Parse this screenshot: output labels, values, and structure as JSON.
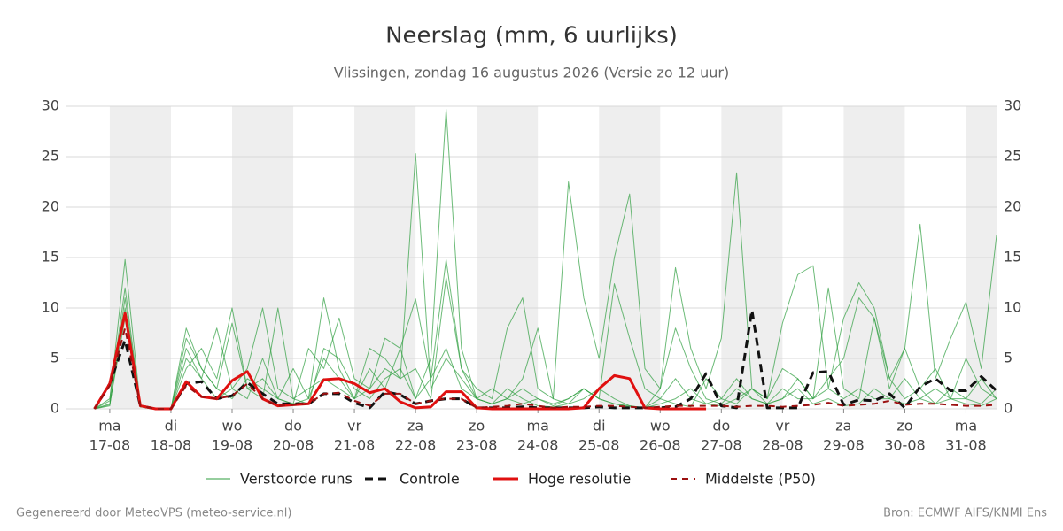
{
  "chart_data": {
    "type": "line",
    "title": "Neerslag (mm, 6 uurlijks)",
    "subtitle": "Vlissingen, zondag 16 augustus 2026 (Versie zo 12 uur)",
    "footer_left": "Gegenereerd door MeteoVPS (meteo-service.nl)",
    "footer_right": "Bron: ECMWF AIFS/KNMI Ens",
    "ensemble_name": "Verstoorde runs",
    "ensemble_color": "#2e9e3e",
    "x": [
      -6,
      0,
      6,
      12,
      18,
      24,
      30,
      36,
      42,
      48,
      54,
      60,
      66,
      72,
      78,
      84,
      90,
      96,
      102,
      108,
      114,
      120,
      126,
      132,
      138,
      144,
      150,
      156,
      162,
      168,
      174,
      180,
      186,
      192,
      198,
      204,
      210,
      216,
      222,
      228,
      234,
      240,
      246,
      252,
      258,
      264,
      270,
      276,
      282,
      288,
      294,
      300,
      306,
      312,
      318,
      324,
      330,
      336,
      342,
      348
    ],
    "xlim": [
      -17,
      348
    ],
    "xticks": [
      {
        "value": 0,
        "label": "ma",
        "sublabel": "17-08"
      },
      {
        "value": 24,
        "label": "di",
        "sublabel": "18-08"
      },
      {
        "value": 48,
        "label": "wo",
        "sublabel": "19-08"
      },
      {
        "value": 72,
        "label": "do",
        "sublabel": "20-08"
      },
      {
        "value": 96,
        "label": "vr",
        "sublabel": "21-08"
      },
      {
        "value": 120,
        "label": "za",
        "sublabel": "22-08"
      },
      {
        "value": 144,
        "label": "zo",
        "sublabel": "23-08"
      },
      {
        "value": 168,
        "label": "ma",
        "sublabel": "24-08"
      },
      {
        "value": 192,
        "label": "di",
        "sublabel": "25-08"
      },
      {
        "value": 216,
        "label": "wo",
        "sublabel": "26-08"
      },
      {
        "value": 240,
        "label": "do",
        "sublabel": "27-08"
      },
      {
        "value": 264,
        "label": "vr",
        "sublabel": "28-08"
      },
      {
        "value": 288,
        "label": "za",
        "sublabel": "29-08"
      },
      {
        "value": 312,
        "label": "zo",
        "sublabel": "30-08"
      },
      {
        "value": 336,
        "label": "ma",
        "sublabel": "31-08"
      }
    ],
    "ylim": [
      0,
      30
    ],
    "yticks": [
      0,
      5,
      10,
      15,
      20,
      25,
      30
    ],
    "grid": true,
    "ensemble": [
      [
        0,
        1,
        12,
        0.3,
        0,
        0,
        5,
        3,
        1,
        2,
        4,
        10,
        2,
        1,
        0.5,
        6,
        5,
        2,
        1,
        3,
        4,
        1,
        5,
        29.7,
        6,
        1,
        0.5,
        2,
        1,
        0.3,
        0.2,
        0.5,
        1,
        2,
        1,
        0.3,
        0.1,
        0.5,
        1,
        2,
        0.5,
        0.3,
        1,
        2,
        0.5,
        1,
        2,
        0.5,
        1,
        0.3,
        0.5,
        2,
        1,
        0.5,
        1,
        2,
        1,
        0.5,
        0.3,
        1
      ],
      [
        0,
        0.5,
        9,
        0.2,
        0,
        0,
        8,
        4,
        2,
        1,
        3,
        2,
        1,
        0.5,
        6,
        4,
        9,
        3,
        2,
        4,
        3,
        25.3,
        2,
        5,
        3,
        1,
        0.5,
        1,
        3,
        8,
        1,
        0.5,
        2,
        1,
        0.5,
        0.2,
        0.1,
        1,
        0.5,
        0.2,
        3,
        1,
        0.5,
        2,
        1,
        4,
        3,
        1,
        12,
        2,
        1,
        9,
        3,
        1,
        2,
        0.5,
        1,
        1,
        0.5,
        2
      ],
      [
        0,
        0.3,
        11,
        0.2,
        0,
        0,
        6,
        3,
        8,
        2,
        1,
        5,
        1,
        0.5,
        1,
        11,
        4,
        1,
        6,
        5,
        3,
        4,
        1,
        13,
        4,
        2,
        1,
        8,
        11,
        2,
        1,
        22.5,
        11,
        5,
        15,
        21.3,
        4,
        2,
        8,
        4,
        1,
        0.5,
        2,
        1,
        0.5,
        1,
        3,
        1,
        2,
        1,
        2,
        1,
        1,
        3,
        1,
        0.5,
        2,
        1,
        3,
        1
      ],
      [
        0,
        0.8,
        14.8,
        0.3,
        0,
        0,
        7,
        4,
        2,
        8.5,
        2,
        1,
        10,
        1,
        2,
        3,
        2,
        1,
        4,
        2,
        6,
        1,
        3,
        14.8,
        4,
        1,
        2,
        1,
        0.5,
        1,
        0.3,
        1,
        2,
        1,
        0.5,
        0.3,
        0.1,
        2,
        14,
        6,
        2,
        7,
        23.4,
        2,
        1,
        8.5,
        13.3,
        14.2,
        2,
        9,
        12.5,
        10,
        3,
        6,
        2,
        4,
        1,
        5,
        2,
        1
      ],
      [
        0,
        0.4,
        10,
        0.2,
        0,
        0,
        4,
        6,
        3,
        10,
        2,
        3,
        1,
        4,
        1,
        5,
        3,
        1,
        2,
        7,
        6,
        10.9,
        3,
        6,
        2,
        1,
        0.5,
        1,
        2,
        1,
        0.5,
        1,
        2,
        1,
        12.4,
        7,
        2,
        1,
        3,
        1,
        0.5,
        1,
        3,
        1,
        0.5,
        2,
        1,
        1,
        3,
        5,
        11,
        9,
        2,
        6,
        18.3,
        3,
        7,
        10.6,
        4,
        17.2
      ]
    ],
    "series": [
      {
        "name": "Controle",
        "color": "#111111",
        "dash": "9,6",
        "width": 3,
        "values": [
          0,
          2.5,
          6.8,
          0.3,
          0,
          0,
          2.5,
          2.7,
          1,
          1.3,
          2.6,
          1.5,
          0.5,
          0.5,
          0.5,
          1.5,
          1.5,
          0.6,
          0.1,
          1.7,
          1.4,
          0.5,
          0.8,
          1,
          1,
          0.1,
          0.1,
          0.1,
          0.2,
          0.1,
          0.1,
          0.1,
          0.1,
          0.2,
          0.1,
          0.1,
          0.1,
          0.1,
          0.2,
          1,
          3.5,
          0.3,
          0.1,
          9.8,
          0.1,
          0.1,
          0.1,
          3.6,
          3.7,
          0.4,
          0.9,
          0.8,
          1.5,
          0.1,
          2.2,
          3,
          1.8,
          1.8,
          3.2,
          1.8
        ]
      },
      {
        "name": "Hoge resolutie",
        "color": "#e01010",
        "dash": "",
        "width": 3,
        "values": [
          0,
          2.5,
          9.5,
          0.3,
          0,
          0,
          2.7,
          1.2,
          1,
          2.8,
          3.7,
          1,
          0.3,
          0.4,
          0.5,
          2.9,
          3,
          2.5,
          1.6,
          2,
          0.7,
          0.1,
          0.2,
          1.7,
          1.7,
          0.1,
          0,
          0,
          0,
          0,
          0,
          0,
          0.1,
          2,
          3.3,
          3,
          0.1,
          0,
          0,
          0,
          0,
          null,
          null,
          null,
          null,
          null,
          null,
          null,
          null,
          null,
          null,
          null,
          null,
          null,
          null,
          null,
          null,
          null,
          null,
          null
        ]
      },
      {
        "name": "Middelste (P50)",
        "color": "#9b1010",
        "dash": "7,6",
        "width": 2,
        "values": [
          0,
          2.3,
          8,
          0.3,
          0,
          0,
          2.3,
          1.2,
          1,
          1.3,
          2.5,
          1,
          0.3,
          0.4,
          0.5,
          1.5,
          1.6,
          0.8,
          0.3,
          1.5,
          1.5,
          0.5,
          0.8,
          1,
          1,
          0.1,
          0.2,
          0.3,
          0.5,
          0.3,
          0.1,
          0.2,
          0.2,
          0.3,
          0.3,
          0.2,
          0.1,
          0.2,
          0.3,
          0.3,
          0.3,
          0.3,
          0.2,
          0.3,
          0.3,
          0.2,
          0.3,
          0.4,
          0.6,
          0.3,
          0.4,
          0.5,
          0.8,
          0.4,
          0.5,
          0.5,
          0.4,
          0.3,
          0.3,
          0.4
        ]
      }
    ]
  }
}
